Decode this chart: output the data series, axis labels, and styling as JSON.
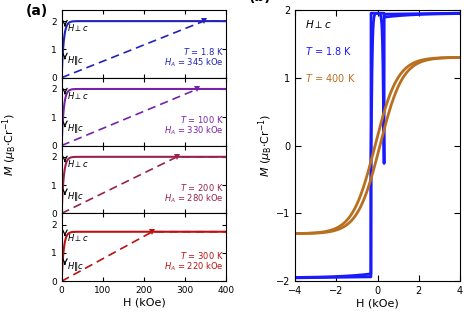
{
  "panel_a": {
    "temps": [
      1.8,
      100,
      200,
      300
    ],
    "HA_values": [
      345,
      330,
      280,
      220
    ],
    "colors": [
      "#2222bb",
      "#7722aa",
      "#99224d",
      "#bb1111"
    ],
    "M_sat": [
      2.0,
      2.0,
      2.0,
      1.75
    ],
    "xlim": [
      0,
      400
    ],
    "ylim": [
      0,
      2.4
    ],
    "xlabel": "H (kOe)",
    "ylabel": "$M$ ($\\mu_\\mathrm{B}\\cdot$Cr$^{-1}$)"
  },
  "panel_b": {
    "color_18K": "#1a1aff",
    "color_400K": "#b87020",
    "Ms_18": 1.95,
    "Ms_400": 1.3,
    "Hc_18": 0.32,
    "Hc_400": 0.12,
    "xlim": [
      -4,
      4
    ],
    "ylim": [
      -2,
      2
    ],
    "xlabel": "H (kOe)",
    "ylabel": "$M$ ($\\mu_\\mathrm{B}\\cdot$Cr$^{-1}$)"
  }
}
